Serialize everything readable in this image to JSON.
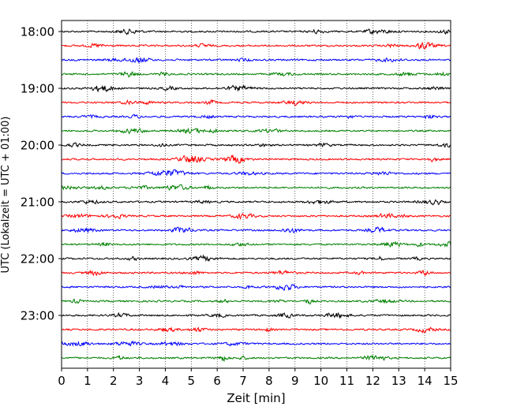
{
  "chart_data": {
    "type": "line",
    "title": "",
    "xlabel": "Zeit  [min]",
    "ylabel": "UTC (Lokalzeit = UTC + 01:00)",
    "xlim": [
      0,
      15
    ],
    "x_ticks": [
      "0",
      "1",
      "2",
      "3",
      "4",
      "5",
      "6",
      "7",
      "8",
      "9",
      "10",
      "11",
      "12",
      "13",
      "14",
      "15"
    ],
    "y_ticks": [
      "18:00",
      "19:00",
      "20:00",
      "21:00",
      "22:00",
      "23:00"
    ],
    "start_hour": "18:00",
    "traces_per_hour": 4,
    "trace_minutes": 15,
    "trace_colors": [
      "#000000",
      "#ff0000",
      "#0000ff",
      "#008000"
    ],
    "grid": {
      "x": "dotted-vertical",
      "y": false
    },
    "traces": [
      {
        "start": "18:00",
        "color": "#000000"
      },
      {
        "start": "18:15",
        "color": "#ff0000"
      },
      {
        "start": "18:30",
        "color": "#0000ff"
      },
      {
        "start": "18:45",
        "color": "#008000"
      },
      {
        "start": "19:00",
        "color": "#000000"
      },
      {
        "start": "19:15",
        "color": "#ff0000"
      },
      {
        "start": "19:30",
        "color": "#0000ff"
      },
      {
        "start": "19:45",
        "color": "#008000"
      },
      {
        "start": "20:00",
        "color": "#000000"
      },
      {
        "start": "20:15",
        "color": "#ff0000"
      },
      {
        "start": "20:30",
        "color": "#0000ff"
      },
      {
        "start": "20:45",
        "color": "#008000"
      },
      {
        "start": "21:00",
        "color": "#000000"
      },
      {
        "start": "21:15",
        "color": "#ff0000"
      },
      {
        "start": "21:30",
        "color": "#0000ff"
      },
      {
        "start": "21:45",
        "color": "#008000"
      },
      {
        "start": "22:00",
        "color": "#000000"
      },
      {
        "start": "22:15",
        "color": "#ff0000"
      },
      {
        "start": "22:30",
        "color": "#0000ff"
      },
      {
        "start": "22:45",
        "color": "#008000"
      },
      {
        "start": "23:00",
        "color": "#000000"
      },
      {
        "start": "23:15",
        "color": "#ff0000"
      },
      {
        "start": "23:30",
        "color": "#0000ff"
      },
      {
        "start": "23:45",
        "color": "#008000"
      }
    ]
  }
}
